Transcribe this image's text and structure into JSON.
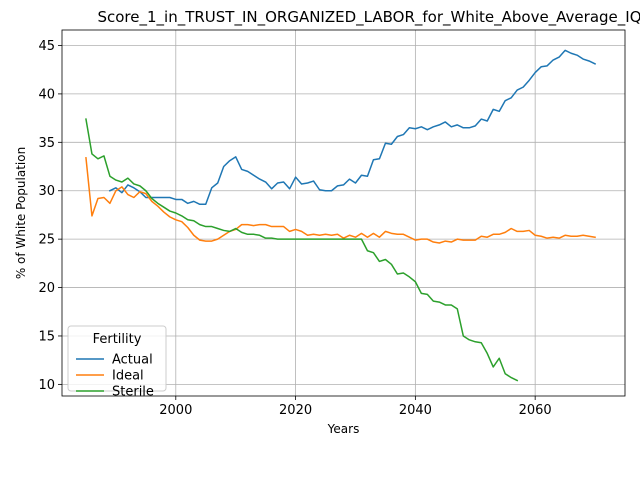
{
  "chart_data": {
    "type": "line",
    "title": "Score_1_in_TRUST_IN_ORGANIZED_LABOR_for_White_Above_Average_IQ",
    "xlabel": "Years",
    "ylabel": "% of White Population",
    "xlim": [
      1981,
      2075
    ],
    "ylim": [
      8.8,
      46.6
    ],
    "xticks": [
      2000,
      2020,
      2040,
      2060
    ],
    "yticks": [
      10,
      15,
      20,
      25,
      30,
      35,
      40,
      45
    ],
    "grid": true,
    "legend": {
      "title": "Fertility",
      "placement": "lower-left"
    },
    "colors": {
      "Actual": "#1f77b4",
      "Ideal": "#ff7f0e",
      "Sterile": "#2ca02c"
    },
    "series": [
      {
        "name": "Actual",
        "x": [
          1989,
          1990,
          1991,
          1992,
          1993,
          1994,
          1995,
          1996,
          1997,
          1998,
          1999,
          2000,
          2001,
          2002,
          2003,
          2004,
          2005,
          2006,
          2007,
          2008,
          2009,
          2010,
          2011,
          2012,
          2013,
          2014,
          2015,
          2016,
          2017,
          2018,
          2019,
          2020,
          2021,
          2022,
          2023,
          2024,
          2025,
          2026,
          2027,
          2028,
          2029,
          2030,
          2031,
          2032,
          2033,
          2034,
          2035,
          2036,
          2037,
          2038,
          2039,
          2040,
          2041,
          2042,
          2043,
          2044,
          2045,
          2046,
          2047,
          2048,
          2049,
          2050,
          2051,
          2052,
          2053,
          2054,
          2055,
          2056,
          2057,
          2058,
          2059,
          2060,
          2061,
          2062,
          2063,
          2064,
          2065,
          2066,
          2067,
          2068,
          2069,
          2070
        ],
        "values": [
          30.0,
          30.3,
          29.8,
          30.6,
          30.3,
          29.9,
          29.3,
          29.3,
          29.3,
          29.3,
          29.3,
          29.1,
          29.1,
          28.7,
          28.9,
          28.6,
          28.6,
          30.3,
          30.8,
          32.5,
          33.1,
          33.5,
          32.2,
          32.0,
          31.6,
          31.2,
          30.9,
          30.2,
          30.8,
          30.9,
          30.2,
          31.4,
          30.7,
          30.8,
          31.0,
          30.1,
          30.0,
          30.0,
          30.5,
          30.6,
          31.2,
          30.8,
          31.6,
          31.5,
          33.2,
          33.3,
          34.9,
          34.8,
          35.6,
          35.8,
          36.5,
          36.4,
          36.6,
          36.3,
          36.6,
          36.8,
          37.1,
          36.6,
          36.8,
          36.5,
          36.5,
          36.7,
          37.4,
          37.2,
          38.4,
          38.2,
          39.3,
          39.6,
          40.4,
          40.7,
          41.4,
          42.2,
          42.8,
          42.9,
          43.5,
          43.8,
          44.5,
          44.2,
          44.0,
          43.6,
          43.4,
          43.1
        ]
      },
      {
        "name": "Ideal",
        "x": [
          1985,
          1986,
          1987,
          1988,
          1989,
          1990,
          1991,
          1992,
          1993,
          1994,
          1995,
          1996,
          1997,
          1998,
          1999,
          2000,
          2001,
          2002,
          2003,
          2004,
          2005,
          2006,
          2007,
          2008,
          2009,
          2010,
          2011,
          2012,
          2013,
          2014,
          2015,
          2016,
          2017,
          2018,
          2019,
          2020,
          2021,
          2022,
          2023,
          2024,
          2025,
          2026,
          2027,
          2028,
          2029,
          2030,
          2031,
          2032,
          2033,
          2034,
          2035,
          2036,
          2037,
          2038,
          2039,
          2040,
          2041,
          2042,
          2043,
          2044,
          2045,
          2046,
          2047,
          2048,
          2049,
          2050,
          2051,
          2052,
          2053,
          2054,
          2055,
          2056,
          2057,
          2058,
          2059,
          2060,
          2061,
          2062,
          2063,
          2064,
          2065,
          2066,
          2067,
          2068,
          2069,
          2070
        ],
        "values": [
          33.4,
          27.4,
          29.2,
          29.3,
          28.7,
          30.0,
          30.4,
          29.6,
          29.3,
          29.9,
          29.7,
          28.9,
          28.4,
          27.8,
          27.3,
          27.0,
          26.8,
          26.2,
          25.4,
          24.9,
          24.8,
          24.8,
          25.0,
          25.4,
          25.8,
          26.0,
          26.5,
          26.5,
          26.4,
          26.5,
          26.5,
          26.3,
          26.3,
          26.3,
          25.8,
          26.0,
          25.8,
          25.4,
          25.5,
          25.4,
          25.5,
          25.4,
          25.5,
          25.1,
          25.4,
          25.2,
          25.6,
          25.2,
          25.6,
          25.2,
          25.8,
          25.6,
          25.5,
          25.5,
          25.2,
          24.9,
          25.0,
          25.0,
          24.7,
          24.6,
          24.8,
          24.7,
          25.0,
          24.9,
          24.9,
          24.9,
          25.3,
          25.2,
          25.5,
          25.5,
          25.7,
          26.1,
          25.8,
          25.8,
          25.9,
          25.4,
          25.3,
          25.1,
          25.2,
          25.1,
          25.4,
          25.3,
          25.3,
          25.4,
          25.3,
          25.2
        ]
      },
      {
        "name": "Sterile",
        "x": [
          1985,
          1986,
          1987,
          1988,
          1989,
          1990,
          1991,
          1992,
          1993,
          1994,
          1995,
          1996,
          1997,
          1998,
          1999,
          2000,
          2001,
          2002,
          2003,
          2004,
          2005,
          2006,
          2007,
          2008,
          2009,
          2010,
          2011,
          2012,
          2013,
          2014,
          2015,
          2016,
          2017,
          2018,
          2019,
          2020,
          2021,
          2022,
          2023,
          2024,
          2025,
          2026,
          2027,
          2028,
          2029,
          2030,
          2031,
          2032,
          2033,
          2034,
          2035,
          2036,
          2037,
          2038,
          2039,
          2040,
          2041,
          2042,
          2043,
          2044,
          2045,
          2046,
          2047,
          2048,
          2049,
          2050,
          2051,
          2052,
          2053,
          2054,
          2055,
          2056,
          2057
        ],
        "values": [
          37.4,
          33.8,
          33.3,
          33.6,
          31.5,
          31.1,
          30.9,
          31.3,
          30.7,
          30.5,
          30.0,
          29.2,
          28.7,
          28.3,
          27.9,
          27.7,
          27.4,
          27.0,
          26.9,
          26.5,
          26.3,
          26.3,
          26.1,
          25.9,
          25.8,
          26.1,
          25.7,
          25.5,
          25.5,
          25.4,
          25.1,
          25.1,
          25.0,
          25.0,
          25.0,
          25.0,
          25.0,
          25.0,
          25.0,
          25.0,
          25.0,
          25.0,
          25.0,
          25.0,
          25.0,
          25.0,
          25.0,
          23.8,
          23.6,
          22.7,
          22.9,
          22.4,
          21.4,
          21.5,
          21.1,
          20.6,
          19.4,
          19.3,
          18.6,
          18.5,
          18.2,
          18.2,
          17.8,
          15.0,
          14.6,
          14.4,
          14.3,
          13.2,
          11.8,
          12.7,
          11.1,
          10.7,
          10.4
        ]
      }
    ]
  }
}
